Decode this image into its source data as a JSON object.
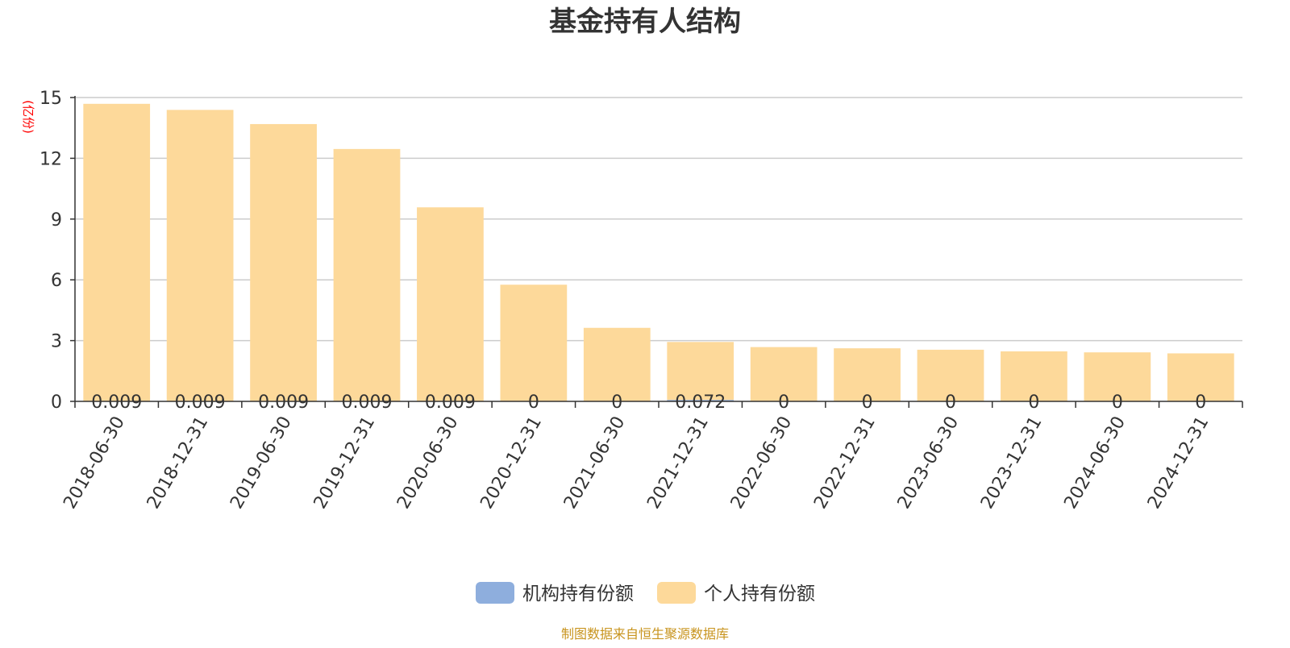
{
  "chart_data": {
    "type": "bar",
    "title": "基金持有人结构",
    "ylabel": "(亿份)",
    "ylim": [
      0,
      15
    ],
    "yticks": [
      0,
      3,
      6,
      9,
      12,
      15
    ],
    "grid": true,
    "legend_position": "bottom-center",
    "categories": [
      "2018-06-30",
      "2018-12-31",
      "2019-06-30",
      "2019-12-31",
      "2020-06-30",
      "2020-12-31",
      "2021-06-30",
      "2021-12-31",
      "2022-06-30",
      "2022-12-31",
      "2023-06-30",
      "2023-12-31",
      "2024-06-30",
      "2024-12-31"
    ],
    "series": [
      {
        "name": "机构持有份额",
        "color": "#8eaedd",
        "values": [
          0.009,
          0.009,
          0.009,
          0.009,
          0.009,
          0,
          0,
          0.072,
          0,
          0,
          0,
          0,
          0,
          0
        ],
        "labels": [
          "0.009",
          "0.009",
          "0.009",
          "0.009",
          "0.009",
          "0",
          "0",
          "0.072",
          "0",
          "0",
          "0",
          "0",
          "0",
          "0"
        ]
      },
      {
        "name": "个人持有份额",
        "color": "#fdd99a",
        "values": [
          14.68,
          14.38,
          13.68,
          12.45,
          9.57,
          5.76,
          3.63,
          2.86,
          2.68,
          2.62,
          2.55,
          2.47,
          2.42,
          2.37
        ]
      }
    ],
    "source": "制图数据来自恒生聚源数据库"
  }
}
